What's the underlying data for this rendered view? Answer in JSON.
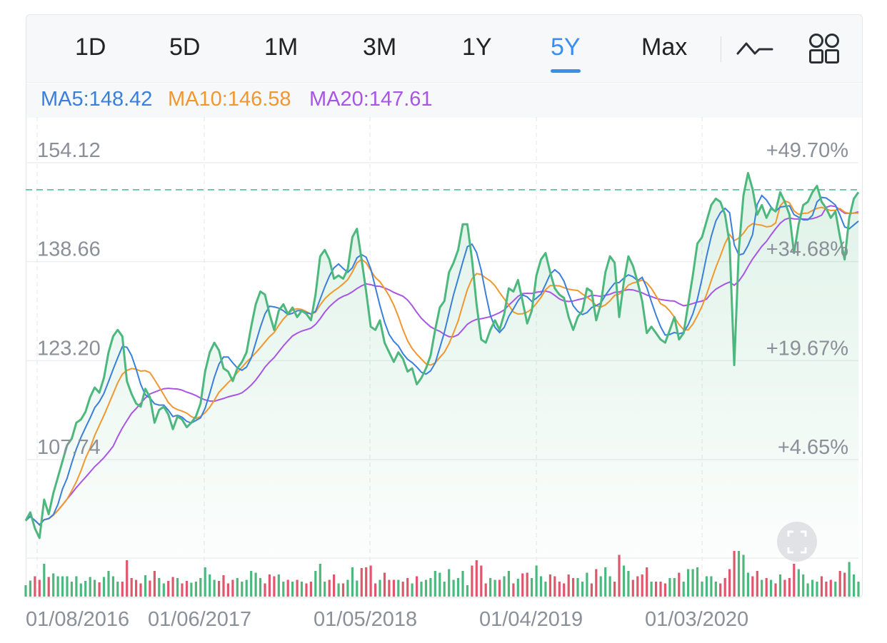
{
  "tabs": [
    "1D",
    "5D",
    "1M",
    "3M",
    "1Y",
    "5Y",
    "Max"
  ],
  "active_tab": "5Y",
  "icons": {
    "line_toggle": "line-chart-icon",
    "grid": "grid-icon",
    "fullscreen": "fullscreen-icon"
  },
  "ma": {
    "ma5": "MA5:148.42",
    "ma10": "MA10:146.58",
    "ma20": "MA20:147.61"
  },
  "colors": {
    "accent": "#3a8ef0",
    "price": "#4cb87e",
    "ma5": "#3a7fd9",
    "ma10": "#f0982f",
    "ma20": "#a855e6",
    "vol_up": "#4cb87e",
    "vol_down": "#e0566c"
  },
  "chart_data": {
    "type": "line",
    "current_price": 149.9,
    "y_ticks": [
      "154.12",
      "138.66",
      "123.20",
      "107.74"
    ],
    "y_tick_values": [
      154.12,
      138.66,
      123.2,
      107.74
    ],
    "pct_ticks": [
      "+49.70%",
      "+34.68%",
      "+19.67%",
      "+4.65%"
    ],
    "ylim": [
      95.0,
      160.0
    ],
    "x_labels": [
      "01/08/2016",
      "01/06/2017",
      "01/05/2018",
      "01/04/2019",
      "01/03/2020"
    ],
    "series": [
      {
        "name": "Price",
        "values": [
          98.2,
          99.5,
          97.0,
          95.5,
          101.5,
          99.2,
          102.5,
          105.0,
          107.5,
          110.0,
          111.0,
          113.5,
          114.0,
          115.2,
          117.5,
          119.0,
          118.2,
          120.5,
          124.5,
          127.0,
          128.0,
          127.0,
          120.0,
          118.0,
          116.5,
          116.0,
          118.8,
          117.5,
          113.5,
          115.5,
          116.0,
          114.8,
          112.5,
          114.5,
          114.0,
          112.8,
          113.5,
          114.5,
          116.5,
          121.5,
          124.5,
          126.0,
          124.8,
          122.0,
          121.5,
          120.0,
          122.0,
          123.0,
          124.5,
          128.5,
          132.0,
          134.0,
          133.5,
          130.5,
          128.0,
          131.0,
          132.0,
          130.5,
          131.5,
          130.0,
          131.0,
          130.5,
          129.5,
          133.5,
          139.5,
          140.5,
          139.0,
          136.0,
          136.5,
          136.0,
          137.5,
          142.5,
          143.8,
          139.0,
          134.0,
          128.5,
          128.0,
          129.5,
          126.0,
          124.5,
          123.0,
          124.5,
          123.5,
          121.5,
          122.0,
          119.5,
          120.5,
          122.0,
          124.0,
          128.0,
          131.5,
          132.5,
          137.0,
          138.5,
          140.5,
          144.5,
          144.5,
          139.0,
          132.0,
          126.5,
          126.0,
          128.0,
          129.5,
          128.0,
          130.5,
          134.5,
          134.0,
          135.8,
          132.5,
          129.0,
          131.0,
          136.5,
          139.0,
          140.0,
          137.0,
          134.5,
          133.5,
          133.0,
          130.0,
          128.0,
          130.0,
          131.0,
          134.5,
          134.0,
          129.5,
          132.0,
          137.0,
          139.5,
          138.5,
          130.0,
          135.5,
          139.5,
          138.0,
          135.5,
          132.5,
          127.5,
          128.5,
          127.5,
          126.5,
          126.0,
          128.0,
          130.0,
          126.5,
          127.5,
          132.0,
          136.5,
          141.5,
          142.5,
          145.0,
          147.5,
          148.5,
          148.0,
          146.0,
          141.5,
          122.5,
          140.5,
          149.0,
          152.5,
          150.0,
          146.0,
          147.5,
          145.5,
          147.0,
          146.5,
          149.5,
          148.0,
          146.0,
          140.0,
          144.5,
          147.5,
          148.0,
          149.5,
          150.5,
          148.0,
          147.0,
          145.5,
          146.5,
          142.5,
          139.0,
          145.5,
          148.5,
          149.5
        ]
      },
      {
        "name": "MA5",
        "values": []
      },
      {
        "name": "MA10",
        "values": []
      },
      {
        "name": "MA20",
        "values": []
      }
    ]
  }
}
